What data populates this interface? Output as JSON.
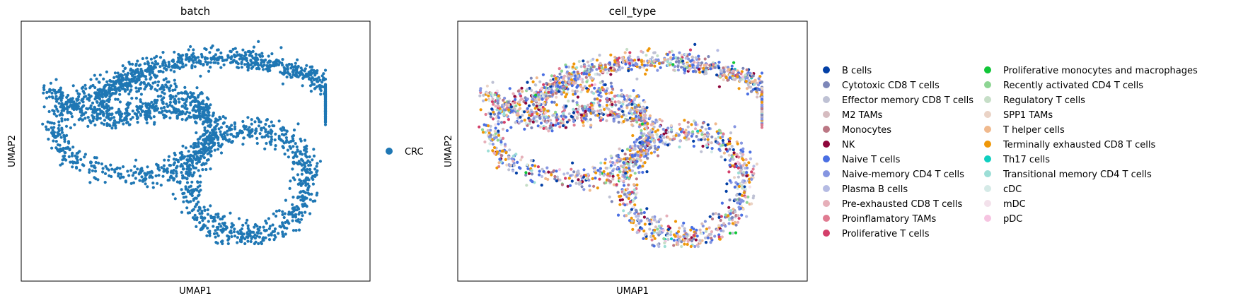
{
  "chart_data": [
    {
      "type": "scatter",
      "title": "batch",
      "xlabel": "UMAP1",
      "ylabel": "UMAP2",
      "xlim": [
        -6,
        6
      ],
      "ylim": [
        -6,
        6
      ],
      "grid": false,
      "legend_placement": "right",
      "categories": [
        "CRC"
      ],
      "colors": [
        "#1f77b4"
      ],
      "series": [
        {
          "name": "CRC",
          "color": "#1f77b4",
          "points": "all cells"
        }
      ]
    },
    {
      "type": "scatter",
      "title": "cell_type",
      "xlabel": "UMAP1",
      "ylabel": "UMAP2",
      "xlim": [
        -6,
        6
      ],
      "ylim": [
        -6,
        6
      ],
      "grid": false,
      "legend_placement": "right",
      "categories": [
        "B cells",
        "Cytotoxic CD8 T cells",
        "Effector memory CD8 T cells",
        "M2 TAMs",
        "Monocytes",
        "NK",
        "Naive T cells",
        "Naive-memory CD4 T cells",
        "Plasma B cells",
        "Pre-exhausted CD8 T cells",
        "Proinflamatory TAMs",
        "Proliferative T cells",
        "Proliferative monocytes and macrophages",
        "Recently activated CD4 T cells",
        "Regulatory T cells",
        "SPP1 TAMs",
        "T helper cells",
        "Terminally exhausted CD8 T cells",
        "Th17 cells",
        "Transitional memory CD4 T cells",
        "cDC",
        "mDC",
        "pDC"
      ],
      "colors": [
        "#023fa5",
        "#7d87b9",
        "#bec1d4",
        "#d6bcc0",
        "#bb7784",
        "#8e063b",
        "#4a6fe3",
        "#8595e1",
        "#b5bbe3",
        "#e6afb9",
        "#e07b91",
        "#d33f6a",
        "#11c638",
        "#8dd593",
        "#c6dec7",
        "#ead3c6",
        "#f0b98d",
        "#ef9708",
        "#0fcfc0",
        "#9cded6",
        "#d5eae7",
        "#f3e1eb",
        "#f6c4e1"
      ],
      "weights": [
        4,
        8,
        10,
        4,
        4,
        4,
        12,
        12,
        4,
        5,
        3,
        4,
        0.6,
        3,
        3,
        3,
        5,
        12,
        0.6,
        3,
        2,
        1,
        1
      ]
    }
  ]
}
